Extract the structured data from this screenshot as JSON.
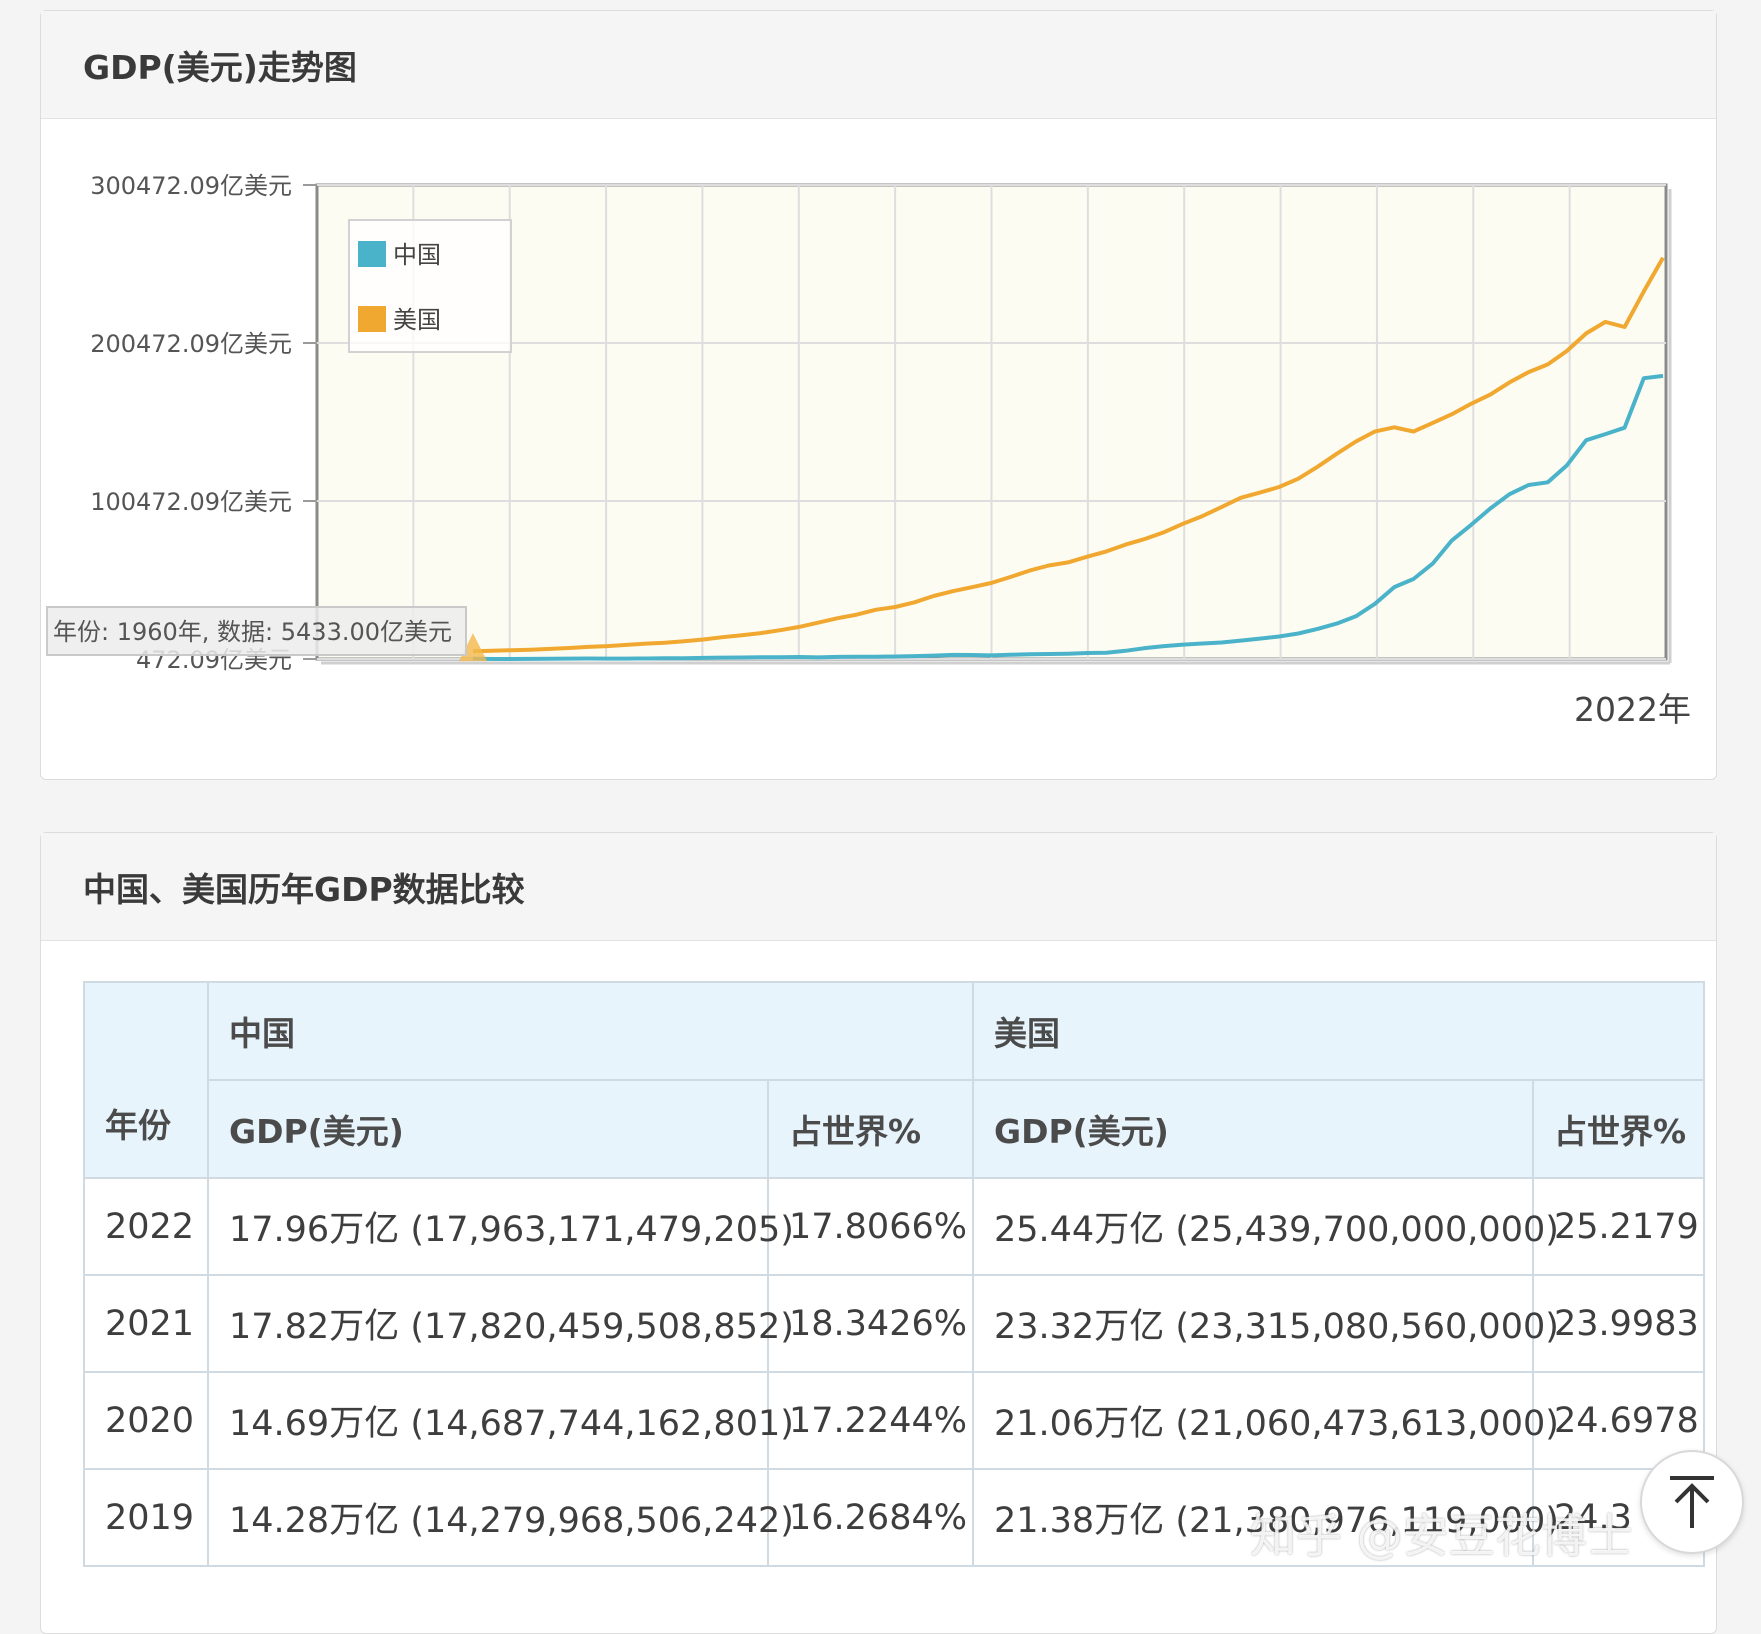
{
  "chart_panel": {
    "title": "GDP(美元)走势图"
  },
  "chart_data": {
    "type": "line",
    "title": "GDP(美元)走势图",
    "x_start": 1960,
    "x_end": 2022,
    "x_end_label": "2022年",
    "y_ticks": [
      472.09,
      100472.09,
      200472.09,
      300472.09
    ],
    "y_tick_labels": [
      "472.09亿美元",
      "100472.09亿美元",
      "200472.09亿美元",
      "300472.09亿美元"
    ],
    "ylim": [
      472.09,
      300472.09
    ],
    "y_unit": "亿美元",
    "grid": true,
    "legend_position": "top-left",
    "tooltip_text": "年份: 1960年, 数据: 5433.00亿美元",
    "series": [
      {
        "name": "中国",
        "color": "#4bb3c9",
        "values": [
          597,
          500,
          472,
          505,
          597,
          704,
          767,
          727,
          700,
          797,
          926,
          999,
          1137,
          1385,
          1441,
          1634,
          1539,
          1749,
          1495,
          1783,
          1911,
          1955,
          2051,
          2306,
          2599,
          3094,
          3007,
          2729,
          3123,
          3478,
          3609,
          3834,
          4269,
          4447,
          5643,
          7345,
          8637,
          9616,
          10290,
          10940,
          12113,
          13393,
          14705,
          16603,
          19553,
          22860,
          27520,
          35500,
          45980,
          51100,
          60870,
          75510,
          85320,
          95700,
          104760,
          110620,
          112330,
          123100,
          138950,
          142800,
          146880,
          178205,
          179632
        ]
      },
      {
        "name": "美国",
        "color": "#f0a830",
        "values": [
          5433,
          5633,
          6051,
          6386,
          6858,
          7437,
          8150,
          8617,
          9425,
          10199,
          10735,
          11649,
          12793,
          14259,
          15452,
          16849,
          18731,
          20813,
          23518,
          26274,
          28573,
          31683,
          33397,
          36342,
          40372,
          43386,
          45903,
          48548,
          52362,
          56416,
          59631,
          61581,
          65204,
          68588,
          72872,
          76397,
          80732,
          86080,
          90891,
          96605,
          102520,
          105820,
          109360,
          114580,
          122140,
          130370,
          138150,
          144520,
          147130,
          144490,
          149920,
          155420,
          161970,
          167840,
          175510,
          182060,
          186950,
          195480,
          206560,
          213810,
          210605,
          233151,
          254397
        ]
      }
    ]
  },
  "table_panel": {
    "title": "中国、美国历年GDP数据比较",
    "headers": {
      "year": "年份",
      "china": "中国",
      "usa": "美国",
      "gdp": "GDP(美元)",
      "share": "占世界%"
    },
    "rows": [
      {
        "year": "2022",
        "cn_gdp": "17.96万亿 (17,963,171,479,205)",
        "cn_share": "17.8066%",
        "us_gdp": "25.44万亿 (25,439,700,000,000)",
        "us_share": "25.2179"
      },
      {
        "year": "2021",
        "cn_gdp": "17.82万亿 (17,820,459,508,852)",
        "cn_share": "18.3426%",
        "us_gdp": "23.32万亿 (23,315,080,560,000)",
        "us_share": "23.9983"
      },
      {
        "year": "2020",
        "cn_gdp": "14.69万亿 (14,687,744,162,801)",
        "cn_share": "17.2244%",
        "us_gdp": "21.06万亿 (21,060,473,613,000)",
        "us_share": "24.6978"
      },
      {
        "year": "2019",
        "cn_gdp": "14.28万亿 (14,279,968,506,242)",
        "cn_share": "16.2684%",
        "us_gdp": "21.38万亿 (21,380,976,119,000)",
        "us_share": "24.3"
      }
    ]
  },
  "watermark": "知乎 @安豆花博士",
  "scroll_top_icon": "arrow-up-to-top-icon"
}
